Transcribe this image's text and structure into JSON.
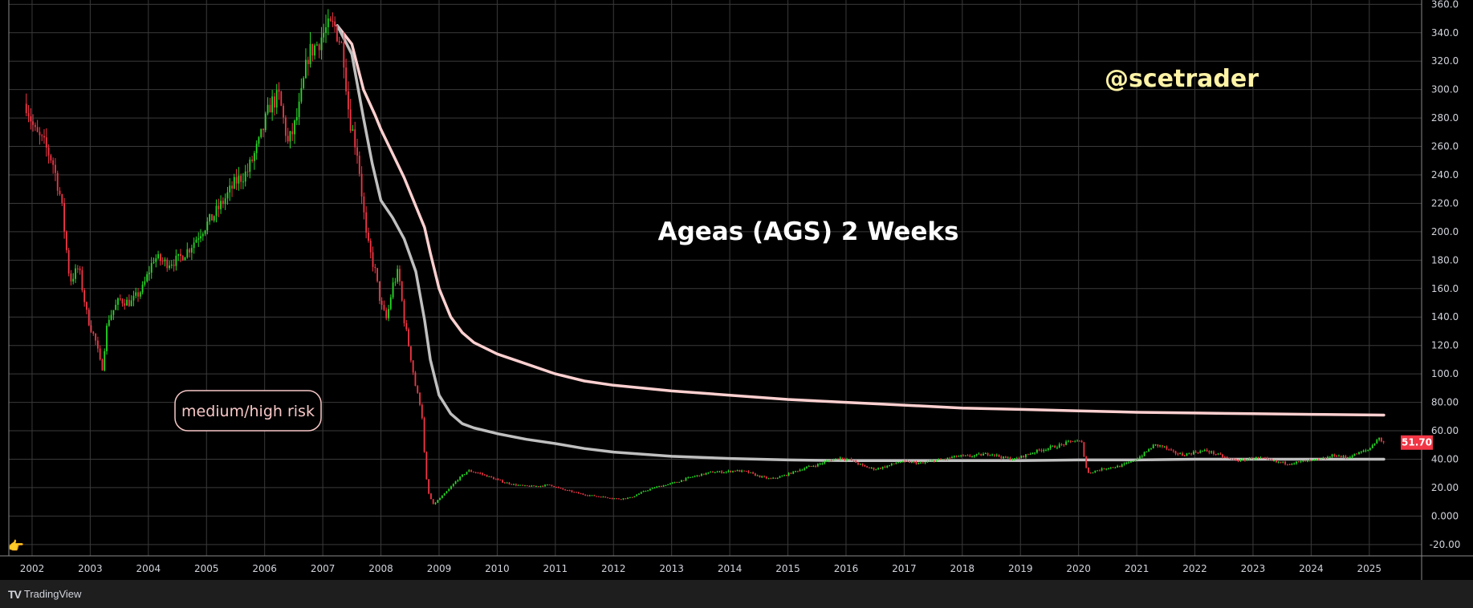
{
  "chart_data": {
    "type": "candlestick",
    "title": "Ageas (AGS) 2 Weeks",
    "watermark": "@scetrader",
    "annotation": "medium/high risk",
    "last_price_label": "51.70",
    "last_price": 51.7,
    "ylim": [
      -28,
      363
    ],
    "xlim": [
      2001.6,
      2025.9
    ],
    "y_ticks": [
      {
        "value": 360,
        "label": "360.0"
      },
      {
        "value": 340,
        "label": "340.0"
      },
      {
        "value": 320,
        "label": "320.0"
      },
      {
        "value": 300,
        "label": "300.0"
      },
      {
        "value": 280,
        "label": "280.0"
      },
      {
        "value": 260,
        "label": "260.0"
      },
      {
        "value": 240,
        "label": "240.0"
      },
      {
        "value": 220,
        "label": "220.0"
      },
      {
        "value": 200,
        "label": "200.0"
      },
      {
        "value": 180,
        "label": "180.0"
      },
      {
        "value": 160,
        "label": "160.0"
      },
      {
        "value": 140,
        "label": "140.0"
      },
      {
        "value": 120,
        "label": "120.0"
      },
      {
        "value": 100,
        "label": "100.0"
      },
      {
        "value": 80,
        "label": "80.00"
      },
      {
        "value": 60,
        "label": "60.00"
      },
      {
        "value": 40,
        "label": "40.00"
      },
      {
        "value": 20,
        "label": "20.00"
      },
      {
        "value": 0,
        "label": "0.000"
      },
      {
        "value": -20,
        "label": "-20.00"
      }
    ],
    "x_ticks": [
      {
        "value": 2002,
        "label": "2002"
      },
      {
        "value": 2003,
        "label": "2003"
      },
      {
        "value": 2004,
        "label": "2004"
      },
      {
        "value": 2005,
        "label": "2005"
      },
      {
        "value": 2006,
        "label": "2006"
      },
      {
        "value": 2007,
        "label": "2007"
      },
      {
        "value": 2008,
        "label": "2008"
      },
      {
        "value": 2009,
        "label": "2009"
      },
      {
        "value": 2010,
        "label": "2010"
      },
      {
        "value": 2011,
        "label": "2011"
      },
      {
        "value": 2012,
        "label": "2012"
      },
      {
        "value": 2013,
        "label": "2013"
      },
      {
        "value": 2014,
        "label": "2014"
      },
      {
        "value": 2015,
        "label": "2015"
      },
      {
        "value": 2016,
        "label": "2016"
      },
      {
        "value": 2017,
        "label": "2017"
      },
      {
        "value": 2018,
        "label": "2018"
      },
      {
        "value": 2019,
        "label": "2019"
      },
      {
        "value": 2020,
        "label": "2020"
      },
      {
        "value": 2021,
        "label": "2021"
      },
      {
        "value": 2022,
        "label": "2022"
      },
      {
        "value": 2023,
        "label": "2023"
      },
      {
        "value": 2024,
        "label": "2024"
      },
      {
        "value": 2025,
        "label": "2025"
      }
    ],
    "price_path": [
      [
        2001.9,
        290
      ],
      [
        2002.05,
        270
      ],
      [
        2002.2,
        262
      ],
      [
        2002.35,
        250
      ],
      [
        2002.5,
        222
      ],
      [
        2002.65,
        165
      ],
      [
        2002.8,
        175
      ],
      [
        2002.95,
        140
      ],
      [
        2003.1,
        122
      ],
      [
        2003.2,
        102
      ],
      [
        2003.3,
        138
      ],
      [
        2003.5,
        152
      ],
      [
        2003.7,
        150
      ],
      [
        2003.9,
        160
      ],
      [
        2004.1,
        182
      ],
      [
        2004.3,
        178
      ],
      [
        2004.5,
        180
      ],
      [
        2004.7,
        188
      ],
      [
        2004.9,
        200
      ],
      [
        2005.1,
        210
      ],
      [
        2005.3,
        222
      ],
      [
        2005.5,
        235
      ],
      [
        2005.7,
        242
      ],
      [
        2005.9,
        262
      ],
      [
        2006.1,
        290
      ],
      [
        2006.25,
        295
      ],
      [
        2006.4,
        262
      ],
      [
        2006.5,
        272
      ],
      [
        2006.6,
        288
      ],
      [
        2006.75,
        325
      ],
      [
        2006.9,
        332
      ],
      [
        2007.05,
        342
      ],
      [
        2007.2,
        345
      ],
      [
        2007.35,
        328
      ],
      [
        2007.45,
        282
      ],
      [
        2007.6,
        255
      ],
      [
        2007.75,
        195
      ],
      [
        2007.9,
        172
      ],
      [
        2008.0,
        148
      ],
      [
        2008.1,
        138
      ],
      [
        2008.2,
        162
      ],
      [
        2008.3,
        172
      ],
      [
        2008.4,
        138
      ],
      [
        2008.5,
        115
      ],
      [
        2008.6,
        90
      ],
      [
        2008.7,
        75
      ],
      [
        2008.75,
        42
      ],
      [
        2008.8,
        18
      ],
      [
        2008.9,
        8
      ],
      [
        2009.0,
        12
      ],
      [
        2009.15,
        18
      ],
      [
        2009.3,
        25
      ],
      [
        2009.5,
        32
      ],
      [
        2009.7,
        30
      ],
      [
        2009.9,
        27
      ],
      [
        2010.1,
        24
      ],
      [
        2010.3,
        22
      ],
      [
        2010.5,
        21
      ],
      [
        2010.7,
        21
      ],
      [
        2010.9,
        22
      ],
      [
        2011.1,
        19
      ],
      [
        2011.3,
        17
      ],
      [
        2011.5,
        15
      ],
      [
        2011.7,
        14
      ],
      [
        2011.9,
        13
      ],
      [
        2012.1,
        12
      ],
      [
        2012.3,
        13
      ],
      [
        2012.5,
        17
      ],
      [
        2012.7,
        20
      ],
      [
        2012.9,
        22
      ],
      [
        2013.1,
        24
      ],
      [
        2013.3,
        27
      ],
      [
        2013.5,
        29
      ],
      [
        2013.7,
        31
      ],
      [
        2013.9,
        31
      ],
      [
        2014.1,
        32
      ],
      [
        2014.3,
        31
      ],
      [
        2014.5,
        28
      ],
      [
        2014.7,
        26
      ],
      [
        2014.9,
        28
      ],
      [
        2015.1,
        31
      ],
      [
        2015.3,
        34
      ],
      [
        2015.5,
        36
      ],
      [
        2015.7,
        39
      ],
      [
        2015.9,
        41
      ],
      [
        2016.1,
        39
      ],
      [
        2016.3,
        35
      ],
      [
        2016.5,
        33
      ],
      [
        2016.7,
        35
      ],
      [
        2016.9,
        38
      ],
      [
        2017.1,
        38
      ],
      [
        2017.3,
        37
      ],
      [
        2017.5,
        39
      ],
      [
        2017.7,
        40
      ],
      [
        2017.9,
        42
      ],
      [
        2018.1,
        42
      ],
      [
        2018.3,
        43
      ],
      [
        2018.5,
        44
      ],
      [
        2018.7,
        41
      ],
      [
        2018.9,
        40
      ],
      [
        2019.1,
        43
      ],
      [
        2019.3,
        46
      ],
      [
        2019.5,
        48
      ],
      [
        2019.7,
        50
      ],
      [
        2019.9,
        53
      ],
      [
        2020.05,
        52
      ],
      [
        2020.15,
        30
      ],
      [
        2020.3,
        32
      ],
      [
        2020.5,
        34
      ],
      [
        2020.7,
        35
      ],
      [
        2020.9,
        38
      ],
      [
        2021.1,
        43
      ],
      [
        2021.3,
        50
      ],
      [
        2021.45,
        49
      ],
      [
        2021.6,
        45
      ],
      [
        2021.8,
        43
      ],
      [
        2022.0,
        45
      ],
      [
        2022.2,
        46
      ],
      [
        2022.4,
        43
      ],
      [
        2022.6,
        40
      ],
      [
        2022.8,
        39
      ],
      [
        2023.0,
        41
      ],
      [
        2023.2,
        40
      ],
      [
        2023.4,
        38
      ],
      [
        2023.6,
        37
      ],
      [
        2023.8,
        38
      ],
      [
        2024.0,
        39
      ],
      [
        2024.2,
        40
      ],
      [
        2024.4,
        43
      ],
      [
        2024.6,
        41
      ],
      [
        2024.8,
        44
      ],
      [
        2025.0,
        47
      ],
      [
        2025.15,
        55
      ],
      [
        2025.25,
        51.7
      ]
    ],
    "series": [
      {
        "color": "#ffd0d0",
        "values": [
          [
            2007.25,
            345
          ],
          [
            2007.5,
            332
          ],
          [
            2007.7,
            300
          ],
          [
            2007.9,
            282
          ],
          [
            2008.0,
            272
          ],
          [
            2008.2,
            255
          ],
          [
            2008.4,
            238
          ],
          [
            2008.6,
            218
          ],
          [
            2008.75,
            203
          ],
          [
            2008.85,
            185
          ],
          [
            2009.0,
            160
          ],
          [
            2009.2,
            140
          ],
          [
            2009.4,
            129
          ],
          [
            2009.6,
            122
          ],
          [
            2009.8,
            118
          ],
          [
            2010.0,
            114
          ],
          [
            2010.5,
            107
          ],
          [
            2011.0,
            100
          ],
          [
            2011.5,
            95
          ],
          [
            2012.0,
            92
          ],
          [
            2013.0,
            88
          ],
          [
            2014.0,
            85
          ],
          [
            2015.0,
            82
          ],
          [
            2016.0,
            80
          ],
          [
            2017.0,
            78
          ],
          [
            2018.0,
            76
          ],
          [
            2019.0,
            75
          ],
          [
            2020.0,
            74
          ],
          [
            2021.0,
            73
          ],
          [
            2022.0,
            72.5
          ],
          [
            2023.0,
            72
          ],
          [
            2024.0,
            71.5
          ],
          [
            2025.25,
            71
          ]
        ]
      },
      {
        "color": "#bfbfbf",
        "values": [
          [
            2007.25,
            345
          ],
          [
            2007.5,
            325
          ],
          [
            2007.7,
            280
          ],
          [
            2007.85,
            248
          ],
          [
            2008.0,
            222
          ],
          [
            2008.2,
            210
          ],
          [
            2008.4,
            195
          ],
          [
            2008.6,
            172
          ],
          [
            2008.75,
            138
          ],
          [
            2008.85,
            110
          ],
          [
            2009.0,
            85
          ],
          [
            2009.2,
            72
          ],
          [
            2009.4,
            65
          ],
          [
            2009.6,
            62
          ],
          [
            2009.8,
            60
          ],
          [
            2010.0,
            58
          ],
          [
            2010.5,
            54
          ],
          [
            2011.0,
            51
          ],
          [
            2011.5,
            47.5
          ],
          [
            2012.0,
            45
          ],
          [
            2013.0,
            42
          ],
          [
            2014.0,
            40.5
          ],
          [
            2015.0,
            39.5
          ],
          [
            2016.0,
            39
          ],
          [
            2017.0,
            39
          ],
          [
            2018.0,
            39
          ],
          [
            2019.0,
            39
          ],
          [
            2020.0,
            39.5
          ],
          [
            2021.0,
            39.5
          ],
          [
            2022.0,
            40
          ],
          [
            2023.0,
            40
          ],
          [
            2024.0,
            40
          ],
          [
            2025.25,
            40
          ]
        ]
      }
    ]
  },
  "footer": {
    "brand_logo": "TV",
    "brand_name": "TradingView"
  },
  "colors": {
    "up": "#26d926",
    "down": "#f23645",
    "grid": "#3a3a3a",
    "axis_line": "#8a8a8a",
    "price_tag": "#f23645"
  }
}
